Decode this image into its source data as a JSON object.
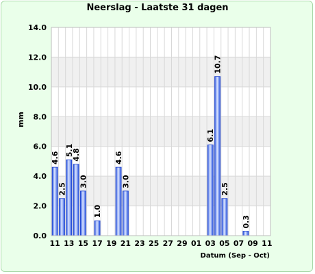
{
  "chart_data": {
    "type": "bar",
    "title": "Neerslag - Laatste 31 dagen",
    "xlabel": "Datum (Sep - Oct)",
    "ylabel": "mm",
    "ylim": [
      0,
      14
    ],
    "yticks": [
      "0.0",
      "2.0",
      "4.0",
      "6.0",
      "8.0",
      "10.0",
      "12.0",
      "14.0"
    ],
    "grid": true,
    "categories": [
      "11",
      "12",
      "13",
      "14",
      "15",
      "16",
      "17",
      "18",
      "19",
      "20",
      "21",
      "22",
      "23",
      "24",
      "25",
      "26",
      "27",
      "28",
      "29",
      "30",
      "01",
      "02",
      "03",
      "04",
      "05",
      "06",
      "07",
      "08",
      "09",
      "10",
      "11"
    ],
    "xtick_labels": [
      "11",
      "13",
      "15",
      "17",
      "19",
      "21",
      "23",
      "25",
      "27",
      "29",
      "01",
      "03",
      "05",
      "07",
      "09",
      "11"
    ],
    "values": [
      4.6,
      2.5,
      5.1,
      4.8,
      3.0,
      0,
      1.0,
      0,
      0,
      4.6,
      3.0,
      0,
      0,
      0,
      0,
      0,
      0,
      0,
      0,
      0,
      0,
      0,
      6.1,
      10.7,
      2.5,
      0,
      0,
      0.3,
      0,
      0,
      0
    ],
    "data_labels": [
      "4.6",
      "2.5",
      "5.1",
      "4.8",
      "3.0",
      "",
      "1.0",
      "",
      "",
      "4.6",
      "3.0",
      "",
      "",
      "",
      "",
      "",
      "",
      "",
      "",
      "",
      "",
      "",
      "6.1",
      "10.7",
      "2.5",
      "",
      "",
      "0.3",
      "",
      "",
      ""
    ],
    "bar_color": "#4d79ff"
  }
}
